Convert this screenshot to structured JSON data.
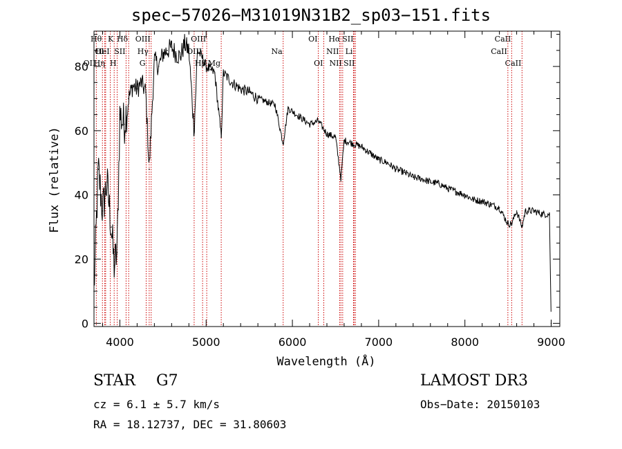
{
  "header": {
    "title": "spec−57026−M31019N31B2_sp03−151.fits"
  },
  "info": {
    "class": "STAR",
    "subclass": "G7",
    "survey": "LAMOST DR3",
    "cz": "cz = 6.1 ± 5.7 km/s",
    "obs_date": "Obs−Date: 20150103",
    "radec": "RA =  18.12737, DEC =  31.80603"
  },
  "chart_data": {
    "type": "line",
    "xlabel": "Wavelength (Å)",
    "ylabel": "Flux (relative)",
    "xlim": [
      3700,
      9100
    ],
    "ylim": [
      -1,
      91
    ],
    "xticks": [
      4000,
      5000,
      6000,
      7000,
      8000,
      9000
    ],
    "yticks": [
      0,
      20,
      40,
      60,
      80
    ],
    "line_color": "#000000",
    "marker_color": "#cc0000",
    "series": [
      {
        "name": "flux",
        "x": [
          3700,
          3750,
          3800,
          3850,
          3900,
          3933,
          3968,
          4000,
          4050,
          4101,
          4150,
          4200,
          4250,
          4300,
          4340,
          4400,
          4450,
          4500,
          4550,
          4600,
          4650,
          4700,
          4750,
          4800,
          4861,
          4900,
          4950,
          5000,
          5050,
          5100,
          5175,
          5200,
          5300,
          5400,
          5500,
          5600,
          5700,
          5800,
          5893,
          5950,
          6000,
          6100,
          6200,
          6300,
          6400,
          6500,
          6563,
          6600,
          6700,
          6800,
          6900,
          7000,
          7100,
          7200,
          7300,
          7400,
          7500,
          7600,
          7700,
          7800,
          7900,
          8000,
          8100,
          8200,
          8300,
          8400,
          8498,
          8542,
          8600,
          8662,
          8700,
          8800,
          8900,
          8980,
          9000
        ],
        "y": [
          10,
          48,
          35,
          44,
          30,
          18,
          22,
          65,
          62,
          70,
          74,
          73,
          75,
          72,
          48,
          82,
          80,
          84,
          85,
          86,
          84,
          83,
          87,
          85,
          60,
          85,
          83,
          80,
          79,
          78,
          58,
          78,
          75,
          73,
          72,
          70,
          69,
          68,
          56,
          67,
          66,
          64,
          62,
          63,
          59,
          58,
          45,
          57,
          56,
          55,
          53,
          51,
          50,
          48,
          47,
          45.5,
          45,
          44,
          43.5,
          42,
          41,
          40,
          38.5,
          38,
          37,
          36,
          31,
          31,
          35,
          30,
          35,
          35,
          34,
          34,
          0
        ]
      }
    ],
    "lines": [
      {
        "name": "Hθ",
        "w": 3798,
        "row": 0,
        "side": "left"
      },
      {
        "name": "OI",
        "w": 3825,
        "row": 1,
        "side": "left"
      },
      {
        "name": "OII",
        "w": 3727,
        "row": 2,
        "side": "left"
      },
      {
        "name": "K",
        "w": 3934,
        "row": 0,
        "side": "left"
      },
      {
        "name": "HeI",
        "w": 3889,
        "row": 1,
        "side": "left"
      },
      {
        "name": "Hη",
        "w": 3835,
        "row": 2,
        "side": "left"
      },
      {
        "name": "Hδ",
        "w": 4102,
        "row": 0,
        "side": "left"
      },
      {
        "name": "SII",
        "w": 4072,
        "row": 1,
        "side": "left"
      },
      {
        "name": "H",
        "w": 3969,
        "row": 2,
        "side": "left"
      },
      {
        "name": "OIII",
        "w": 4363,
        "row": 0,
        "side": "left"
      },
      {
        "name": "Hγ",
        "w": 4340,
        "row": 1,
        "side": "left"
      },
      {
        "name": "G",
        "w": 4305,
        "row": 2,
        "side": "left"
      },
      {
        "name": "OIII",
        "w": 5007,
        "row": 0,
        "side": "left"
      },
      {
        "name": "OIII",
        "w": 4959,
        "row": 1,
        "side": "left"
      },
      {
        "name": "Hβ",
        "w": 4861,
        "row": 2,
        "side": "right"
      },
      {
        "name": "Mg",
        "w": 5175,
        "row": 2,
        "side": "left"
      },
      {
        "name": "Na",
        "w": 5893,
        "row": 1,
        "side": "left"
      },
      {
        "name": "OI",
        "w": 6300,
        "row": 0,
        "side": "left"
      },
      {
        "name": "OI",
        "w": 6364,
        "row": 2,
        "side": "left"
      },
      {
        "name": "Hα",
        "w": 6563,
        "row": 0,
        "side": "left"
      },
      {
        "name": "SII",
        "w": 6716,
        "row": 0,
        "side": "left"
      },
      {
        "name": "NII",
        "w": 6548,
        "row": 1,
        "side": "left"
      },
      {
        "name": "Li",
        "w": 6708,
        "row": 1,
        "side": "left"
      },
      {
        "name": "NII",
        "w": 6583,
        "row": 2,
        "side": "left"
      },
      {
        "name": "SII",
        "w": 6731,
        "row": 2,
        "side": "left"
      },
      {
        "name": "CaII",
        "w": 8542,
        "row": 0,
        "side": "left"
      },
      {
        "name": "CaII",
        "w": 8498,
        "row": 1,
        "side": "left"
      },
      {
        "name": "CaII",
        "w": 8662,
        "row": 2,
        "side": "left"
      }
    ]
  }
}
